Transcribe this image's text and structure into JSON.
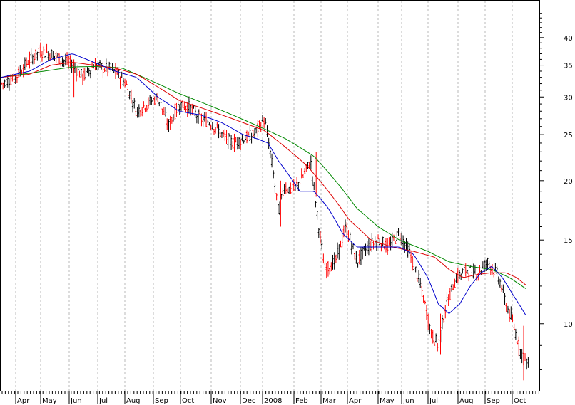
{
  "chart_data": {
    "type": "line",
    "title": "",
    "xlabel": "",
    "ylabel": "",
    "y_scale": "log",
    "ylim": [
      7.2,
      48
    ],
    "y_ticks": [
      10,
      15,
      20,
      25,
      30,
      35,
      40
    ],
    "x_labels": [
      "Apr",
      "May",
      "Jun",
      "Jul",
      "Aug",
      "Sep",
      "Oct",
      "Nov",
      "Dec",
      "2008",
      "Feb",
      "Mar",
      "Apr",
      "May",
      "Jun",
      "Jul",
      "Aug",
      "Sep",
      "Oct"
    ],
    "grid": "vertical dashed at month boundaries",
    "colors": {
      "up_bar": "#000000",
      "down_bar": "#ff0000",
      "ma_short": "#0000cc",
      "ma_mid": "#dd0000",
      "ma_long": "#008800",
      "grid": "#b8b8b8",
      "frame": "#000000"
    },
    "price_anchors": {
      "x": [
        0,
        20,
        40,
        55,
        70,
        85,
        100,
        115,
        130,
        145,
        160,
        175,
        190,
        205,
        220,
        235,
        250,
        265,
        280,
        295,
        310,
        325,
        340,
        355,
        370,
        380,
        390,
        398,
        410,
        425,
        435,
        445,
        455,
        470,
        485,
        500,
        515,
        530,
        545,
        560,
        575,
        590,
        605,
        615,
        625,
        640,
        655,
        670,
        685,
        700,
        710,
        720,
        730,
        742
      ],
      "y": [
        32,
        33,
        36,
        37.5,
        37,
        36,
        35,
        33,
        35,
        34.5,
        34,
        32,
        28,
        29,
        30,
        26,
        29,
        28.5,
        27,
        26.5,
        25,
        24,
        24.5,
        25,
        27,
        22,
        17,
        19.5,
        19,
        20.5,
        22,
        16.5,
        13,
        13.5,
        16,
        13.5,
        14.5,
        15,
        14.5,
        15.5,
        14,
        12,
        9.5,
        9,
        10.8,
        12.5,
        13,
        12.8,
        13.5,
        12.5,
        11,
        10,
        8.8,
        8.2
      ]
    },
    "ma_short": {
      "x": [
        0,
        40,
        70,
        100,
        130,
        160,
        190,
        220,
        250,
        280,
        310,
        340,
        360,
        375,
        390,
        405,
        420,
        440,
        460,
        480,
        500,
        520,
        540,
        560,
        580,
        600,
        615,
        630,
        645,
        660,
        675,
        690,
        705,
        720,
        740
      ],
      "y": [
        33,
        34,
        36,
        37,
        35.5,
        34,
        33,
        30,
        28,
        27.5,
        26.5,
        25,
        24.5,
        24,
        22,
        20.5,
        19,
        19,
        17.5,
        15.5,
        14.5,
        14.5,
        14.5,
        14.5,
        14,
        12.5,
        11,
        10.5,
        11,
        12,
        12.8,
        13.2,
        12.5,
        11.5,
        10.3
      ]
    },
    "ma_mid": {
      "x": [
        0,
        40,
        70,
        100,
        130,
        160,
        190,
        220,
        250,
        280,
        310,
        340,
        370,
        400,
        430,
        460,
        490,
        520,
        550,
        580,
        610,
        630,
        650,
        670,
        690,
        710,
        725,
        740
      ],
      "y": [
        33,
        33.5,
        35,
        35.5,
        35,
        34.5,
        33.5,
        31.5,
        29.5,
        28.5,
        27.5,
        26.5,
        25.5,
        23.5,
        21.5,
        19,
        16.5,
        15,
        14.5,
        14.2,
        13.8,
        13,
        12.5,
        12.7,
        12.8,
        12.8,
        12.5,
        12
      ]
    },
    "ma_long": {
      "x": [
        0,
        60,
        100,
        140,
        170,
        200,
        250,
        300,
        350,
        400,
        440,
        470,
        500,
        530,
        560,
        600,
        630,
        660,
        690,
        715,
        740
      ],
      "y": [
        33,
        34,
        34.7,
        34.8,
        34.5,
        33,
        30.5,
        28.5,
        26.5,
        24.5,
        22.5,
        20,
        17.5,
        16,
        15,
        14.2,
        13.5,
        13.2,
        13,
        12.5,
        11.8
      ]
    }
  }
}
